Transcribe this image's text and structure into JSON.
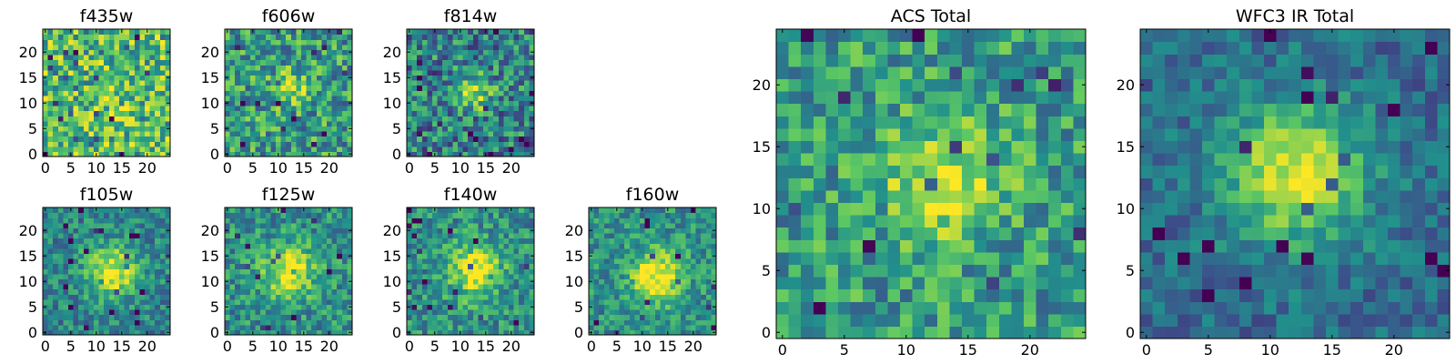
{
  "figure": {
    "colormap": "viridis",
    "colormap_stops": [
      "#440154",
      "#3b528b",
      "#21918c",
      "#5ec962",
      "#fde725"
    ],
    "pixel_grid": [
      25,
      25
    ]
  },
  "chart_data": [
    {
      "type": "heatmap",
      "title": "f435w",
      "xlim": [
        0,
        24
      ],
      "ylim": [
        0,
        24
      ],
      "x_ticks": [
        "0",
        "5",
        "10",
        "15",
        "20"
      ],
      "y_ticks": [
        "0",
        "5",
        "10",
        "15",
        "20"
      ],
      "peak": [
        13,
        12
      ],
      "peak_strength": 0.05,
      "peak_width": 3,
      "noise": 0.32,
      "base": 0.68
    },
    {
      "type": "heatmap",
      "title": "f606w",
      "xlim": [
        0,
        24
      ],
      "ylim": [
        0,
        24
      ],
      "x_ticks": [
        "0",
        "5",
        "10",
        "15",
        "20"
      ],
      "y_ticks": [
        "0",
        "5",
        "10",
        "15",
        "20"
      ],
      "peak": [
        13,
        13
      ],
      "peak_strength": 0.3,
      "peak_width": 2.5,
      "noise": 0.3,
      "base": 0.55
    },
    {
      "type": "heatmap",
      "title": "f814w",
      "xlim": [
        0,
        24
      ],
      "ylim": [
        0,
        24
      ],
      "x_ticks": [
        "0",
        "5",
        "10",
        "15",
        "20"
      ],
      "y_ticks": [
        "0",
        "5",
        "10",
        "15",
        "20"
      ],
      "peak": [
        13,
        12
      ],
      "peak_strength": 0.42,
      "peak_width": 2.3,
      "noise": 0.3,
      "base": 0.45
    },
    {
      "type": "heatmap",
      "title": "ACS Total",
      "xlim": [
        0,
        24
      ],
      "ylim": [
        0,
        24
      ],
      "x_ticks": [
        "0",
        "5",
        "10",
        "15",
        "20"
      ],
      "y_ticks": [
        "0",
        "5",
        "10",
        "15",
        "20"
      ],
      "peak": [
        13,
        12
      ],
      "peak_strength": 0.4,
      "peak_width": 3.2,
      "noise": 0.25,
      "base": 0.55
    },
    {
      "type": "heatmap",
      "title": "WFC3 IR Total",
      "xlim": [
        0,
        24
      ],
      "ylim": [
        0,
        24
      ],
      "x_ticks": [
        "0",
        "5",
        "10",
        "15",
        "20"
      ],
      "y_ticks": [
        "0",
        "5",
        "10",
        "15",
        "20"
      ],
      "peak": [
        12,
        13
      ],
      "peak_strength": 0.6,
      "peak_width": 4.0,
      "noise": 0.15,
      "base": 0.35
    },
    {
      "type": "heatmap",
      "title": "f105w",
      "xlim": [
        0,
        24
      ],
      "ylim": [
        0,
        24
      ],
      "x_ticks": [
        "0",
        "5",
        "10",
        "15",
        "20"
      ],
      "y_ticks": [
        "0",
        "5",
        "10",
        "15",
        "20"
      ],
      "peak": [
        13,
        12
      ],
      "peak_strength": 0.55,
      "peak_width": 3.5,
      "noise": 0.2,
      "base": 0.45
    },
    {
      "type": "heatmap",
      "title": "f125w",
      "xlim": [
        0,
        24
      ],
      "ylim": [
        0,
        24
      ],
      "x_ticks": [
        "0",
        "5",
        "10",
        "15",
        "20"
      ],
      "y_ticks": [
        "0",
        "5",
        "10",
        "15",
        "20"
      ],
      "peak": [
        12,
        12
      ],
      "peak_strength": 0.5,
      "peak_width": 3.5,
      "noise": 0.22,
      "base": 0.5
    },
    {
      "type": "heatmap",
      "title": "f140w",
      "xlim": [
        0,
        24
      ],
      "ylim": [
        0,
        24
      ],
      "x_ticks": [
        "0",
        "5",
        "10",
        "15",
        "20"
      ],
      "y_ticks": [
        "0",
        "5",
        "10",
        "15",
        "20"
      ],
      "peak": [
        13,
        12
      ],
      "peak_strength": 0.5,
      "peak_width": 3.5,
      "noise": 0.22,
      "base": 0.5
    },
    {
      "type": "heatmap",
      "title": "f160w",
      "xlim": [
        0,
        24
      ],
      "ylim": [
        0,
        24
      ],
      "x_ticks": [
        "0",
        "5",
        "10",
        "15",
        "20"
      ],
      "y_ticks": [
        "0",
        "5",
        "10",
        "15",
        "20"
      ],
      "peak": [
        13,
        11
      ],
      "peak_strength": 0.55,
      "peak_width": 3.5,
      "noise": 0.2,
      "base": 0.5
    }
  ]
}
